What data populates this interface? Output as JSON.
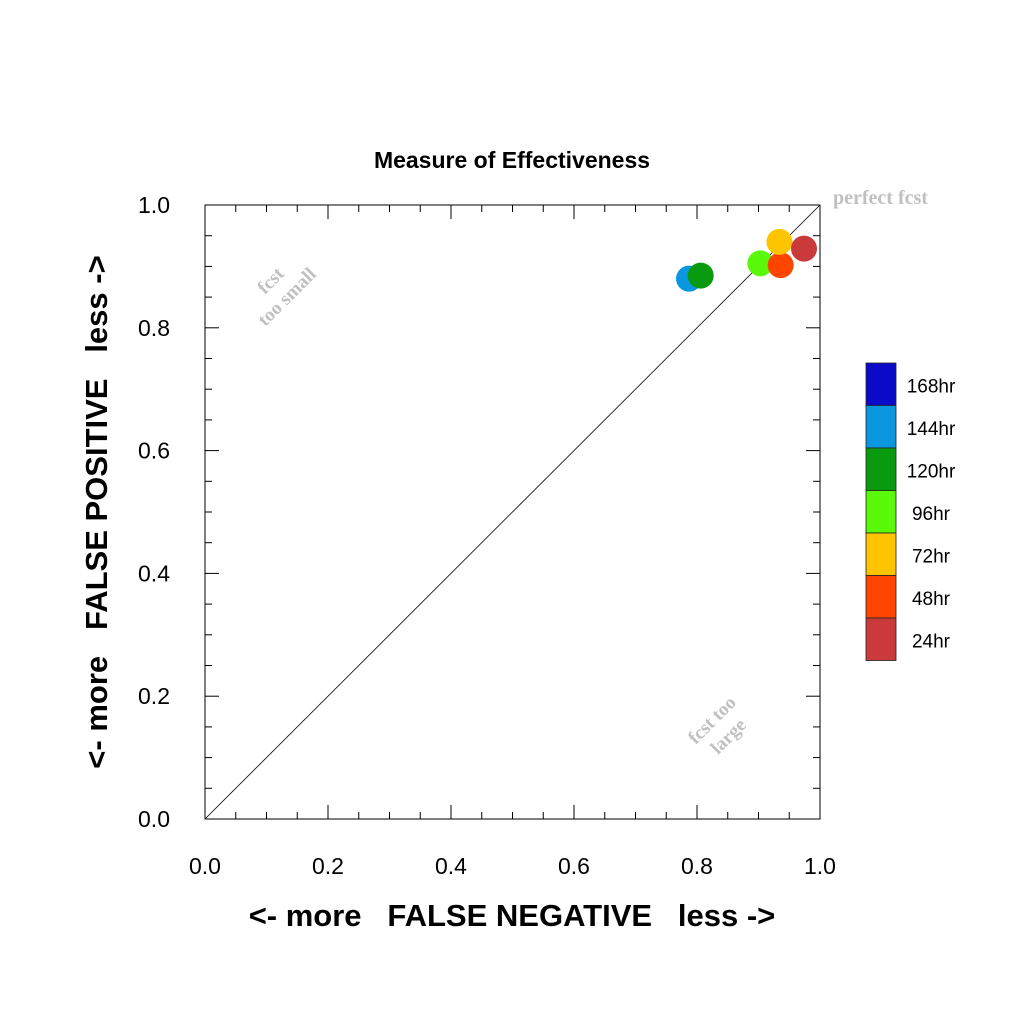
{
  "chart_data": {
    "type": "scatter",
    "title": "Measure of Effectiveness",
    "xlabel": "<- more   FALSE NEGATIVE   less ->",
    "ylabel": "<- more   FALSE POSITIVE   less ->",
    "xlim": [
      0.0,
      1.0
    ],
    "ylim": [
      0.0,
      1.0
    ],
    "xticks": [
      "0.0",
      "0.2",
      "0.4",
      "0.6",
      "0.8",
      "1.0"
    ],
    "yticks": [
      "0.0",
      "0.2",
      "0.4",
      "0.6",
      "0.8",
      "1.0"
    ],
    "grid": false,
    "reference_line": "y = x",
    "annotations": {
      "perfect": "perfect fcst",
      "small_line1": "fcst",
      "small_line2": "too small",
      "large_line1": "fcst too",
      "large_line2": "large"
    },
    "legend_position": "right",
    "legend": [
      {
        "label": "168hr",
        "color": "#0a0ac8"
      },
      {
        "label": "144hr",
        "color": "#0b96e0"
      },
      {
        "label": "120hr",
        "color": "#0a9a10"
      },
      {
        "label": "96hr",
        "color": "#5af90a"
      },
      {
        "label": "72hr",
        "color": "#ffc400"
      },
      {
        "label": "48hr",
        "color": "#ff4500"
      },
      {
        "label": "24hr",
        "color": "#cb3a3a"
      }
    ],
    "series": [
      {
        "name": "144hr",
        "color": "#0b96e0",
        "x": 0.787,
        "y": 0.88
      },
      {
        "name": "120hr",
        "color": "#0a9a10",
        "x": 0.806,
        "y": 0.885
      },
      {
        "name": "96hr",
        "color": "#5af90a",
        "x": 0.903,
        "y": 0.905
      },
      {
        "name": "48hr",
        "color": "#ff4500",
        "x": 0.936,
        "y": 0.902
      },
      {
        "name": "72hr",
        "color": "#ffc400",
        "x": 0.934,
        "y": 0.94
      },
      {
        "name": "24hr",
        "color": "#cb3a3a",
        "x": 0.974,
        "y": 0.929
      }
    ]
  }
}
